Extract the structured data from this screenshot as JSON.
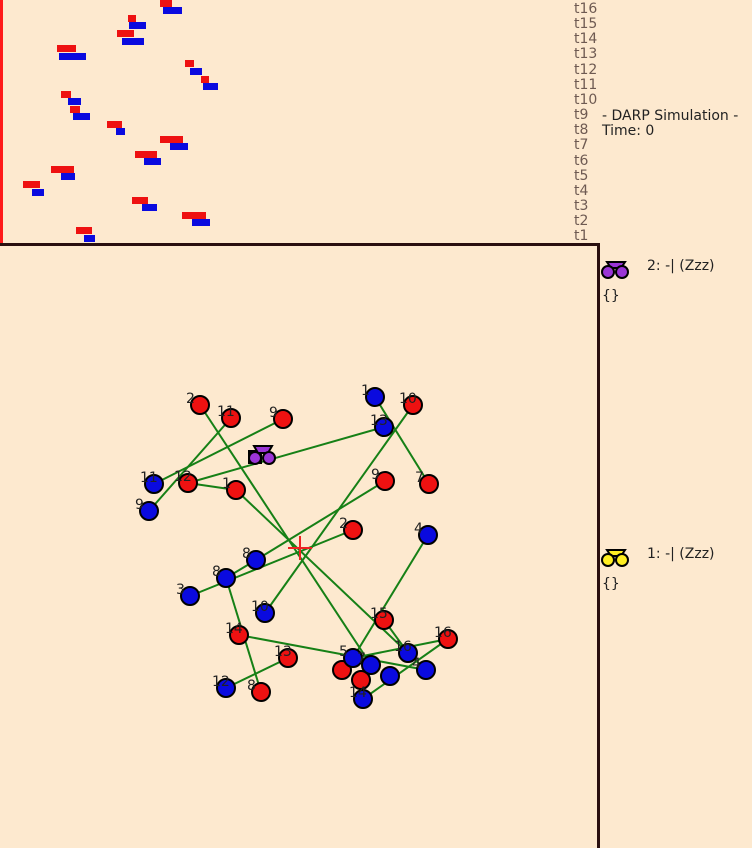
{
  "timeline": {
    "tick_labels": [
      "t16",
      "t15",
      "t14",
      "t13",
      "t12",
      "t11",
      "t10",
      "t9",
      "t8",
      "t7",
      "t6",
      "t5",
      "t4",
      "t3",
      "t2",
      "t1"
    ]
  },
  "simulation": {
    "title": "- DARP Simulation -",
    "time_label": "Time: 0"
  },
  "vehicles": [
    {
      "id": "2",
      "status": "2: -| (Zzz)",
      "load": "{}",
      "color": "#9b35d6"
    },
    {
      "id": "1",
      "status": "1: -| (Zzz)",
      "load": "{}",
      "color": "#ffee22"
    }
  ],
  "colors": {
    "pickup": "#ee1111",
    "dropoff": "#0a0adf",
    "route": "#168016",
    "depot": "#ee2222",
    "timeline_border": "#ff1a1a"
  },
  "map": {
    "node_labels": [
      "2",
      "11",
      "9",
      "1",
      "10",
      "13",
      "11",
      "12",
      "9",
      "1",
      "9",
      "7",
      "2",
      "8",
      "4",
      "3",
      "8",
      "10",
      "14",
      "15",
      "13",
      "16",
      "16",
      "12",
      "5",
      "7",
      "4",
      "8",
      "14"
    ]
  }
}
